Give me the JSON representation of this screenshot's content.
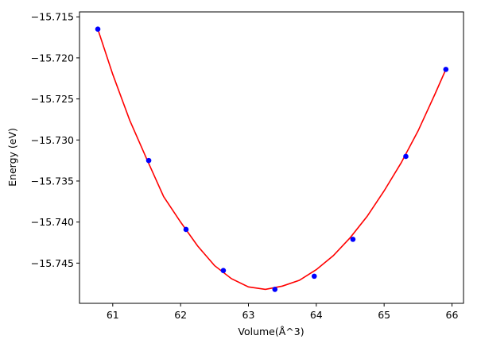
{
  "chart_data": {
    "type": "scatter",
    "title": "",
    "xlabel": "Volume(Å^3)",
    "ylabel": "Energy (eV)",
    "xlim": [
      60.51,
      66.17
    ],
    "ylim": [
      -15.7499,
      -15.7144
    ],
    "x_ticks": [
      61,
      62,
      63,
      64,
      65,
      66
    ],
    "x_tick_labels": [
      "61",
      "62",
      "63",
      "64",
      "65",
      "66"
    ],
    "y_ticks": [
      -15.745,
      -15.74,
      -15.735,
      -15.73,
      -15.725,
      -15.72,
      -15.715
    ],
    "y_tick_labels": [
      "−15.745",
      "−15.740",
      "−15.735",
      "−15.730",
      "−15.725",
      "−15.720",
      "−15.715"
    ],
    "grid": false,
    "legend": "none",
    "series": [
      {
        "kind": "points",
        "color": "#0000ff",
        "x": [
          60.78,
          61.53,
          62.08,
          62.63,
          63.39,
          63.97,
          64.54,
          65.32,
          65.91
        ],
        "y": [
          -15.7165,
          -15.7325,
          -15.7409,
          -15.7459,
          -15.7482,
          -15.7466,
          -15.7421,
          -15.732,
          -15.7214
        ]
      },
      {
        "kind": "fit-curve",
        "color": "#ff0000",
        "x": [
          60.78,
          61.0,
          61.25,
          61.5,
          61.75,
          62.0,
          62.25,
          62.5,
          62.75,
          63.0,
          63.25,
          63.5,
          63.75,
          64.0,
          64.25,
          64.5,
          64.75,
          65.0,
          65.25,
          65.5,
          65.75,
          65.91
        ],
        "y": [
          -15.7165,
          -15.722,
          -15.7276,
          -15.7323,
          -15.7369,
          -15.74,
          -15.7429,
          -15.7453,
          -15.7469,
          -15.7479,
          -15.7482,
          -15.7478,
          -15.7471,
          -15.7458,
          -15.7441,
          -15.7419,
          -15.7393,
          -15.7362,
          -15.7328,
          -15.7289,
          -15.7244,
          -15.7214
        ]
      }
    ]
  }
}
